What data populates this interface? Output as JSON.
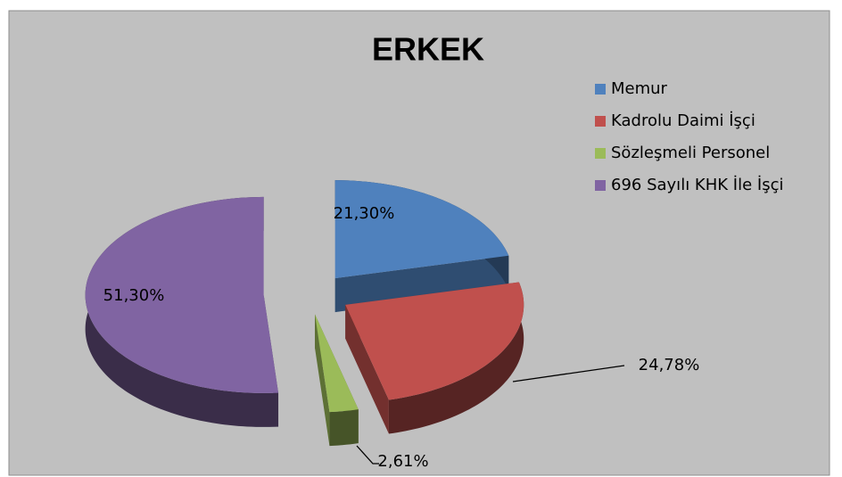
{
  "chart_data": {
    "type": "pie",
    "title": "ERKEK",
    "categories": [
      "Memur",
      "Kadrolu Daimi İşçi",
      "Sözleşmeli  Personel",
      "696 Sayılı KHK İle İşçi"
    ],
    "values": [
      21.3,
      24.78,
      2.61,
      51.3
    ],
    "value_labels": [
      "21,30%",
      "24,78%",
      "2,61%",
      "51,30%"
    ],
    "colors": [
      "#4f81bd",
      "#c0504d",
      "#9bbb59",
      "#8064a2"
    ],
    "legend": "right"
  }
}
